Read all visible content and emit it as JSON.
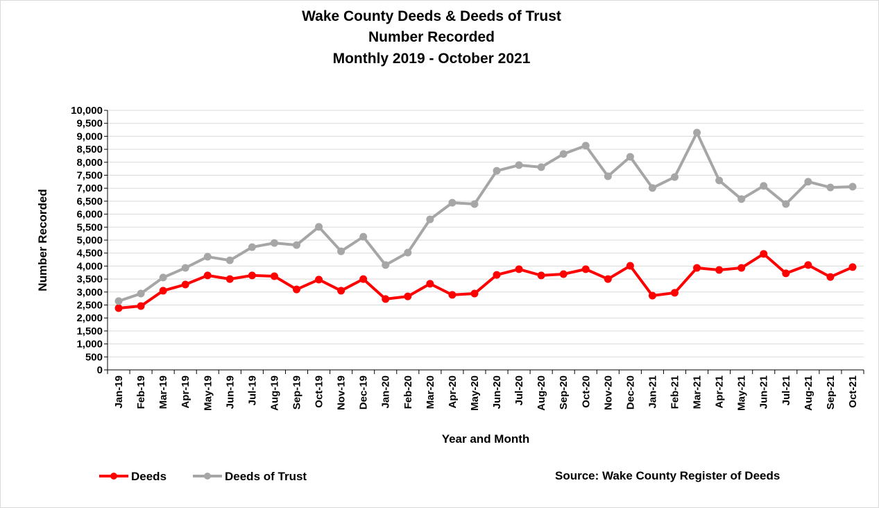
{
  "chart_data": {
    "type": "line",
    "title": [
      "Wake County Deeds & Deeds of Trust",
      "Number Recorded",
      "Monthly 2019 - October 2021"
    ],
    "x_label": "Year and Month",
    "y_label": "Number Recorded",
    "source": "Source: Wake County Register of Deeds",
    "categories": [
      "Jan-19",
      "Feb-19",
      "Mar-19",
      "Apr-19",
      "May-19",
      "Jun-19",
      "Jul-19",
      "Aug-19",
      "Sep-19",
      "Oct-19",
      "Nov-19",
      "Dec-19",
      "Jan-20",
      "Feb-20",
      "Mar-20",
      "Apr-20",
      "May-20",
      "Jun-20",
      "Jul-20",
      "Aug-20",
      "Sep-20",
      "Oct-20",
      "Nov-20",
      "Dec-20",
      "Jan-21",
      "Feb-21",
      "Mar-21",
      "Apr-21",
      "May-21",
      "Jun-21",
      "Jul-21",
      "Aug-21",
      "Sep-21",
      "Oct-21"
    ],
    "series": [
      {
        "name": "Deeds",
        "color": "#ff0000",
        "values": [
          2380,
          2460,
          3050,
          3290,
          3640,
          3500,
          3640,
          3610,
          3100,
          3480,
          3050,
          3500,
          2730,
          2830,
          3320,
          2890,
          2940,
          3660,
          3880,
          3640,
          3690,
          3880,
          3500,
          4010,
          2860,
          2970,
          3930,
          3850,
          3930,
          4470,
          3720,
          4040,
          3580,
          3960
        ]
      },
      {
        "name": "Deeds of Trust",
        "color": "#a6a6a6",
        "values": [
          2650,
          2940,
          3560,
          3930,
          4360,
          4220,
          4730,
          4890,
          4810,
          5510,
          4570,
          5130,
          4040,
          4520,
          5800,
          6440,
          6390,
          7670,
          7890,
          7810,
          8320,
          8640,
          7460,
          8210,
          7010,
          7430,
          9140,
          7300,
          6580,
          7090,
          6390,
          7250,
          7030,
          7060
        ]
      }
    ],
    "ylim": [
      0,
      10000
    ],
    "yticks": [
      0,
      500,
      {
        "value": 1000,
        "label": "1,000"
      },
      {
        "value": 1500,
        "label": "1,500"
      },
      {
        "value": 2000,
        "label": "2,000"
      },
      {
        "value": 2500,
        "label": "2,500"
      },
      {
        "value": 3000,
        "label": "3,000"
      },
      {
        "value": 3500,
        "label": "3,500"
      },
      {
        "value": 4000,
        "label": "4,000"
      },
      {
        "value": 4500,
        "label": "4,500"
      },
      {
        "value": 5000,
        "label": "5,000"
      },
      {
        "value": 5500,
        "label": "5,500"
      },
      {
        "value": 6000,
        "label": "6,000"
      },
      {
        "value": 6500,
        "label": "6,500"
      },
      {
        "value": 7000,
        "label": "7,000"
      },
      {
        "value": 7500,
        "label": "7,500"
      },
      {
        "value": 8000,
        "label": "8,000"
      },
      {
        "value": 8500,
        "label": "8,500"
      },
      {
        "value": 9000,
        "label": "9,000"
      },
      {
        "value": 9500,
        "label": "9,500"
      },
      {
        "value": 10000,
        "label": "10,000"
      }
    ],
    "grid": true
  }
}
